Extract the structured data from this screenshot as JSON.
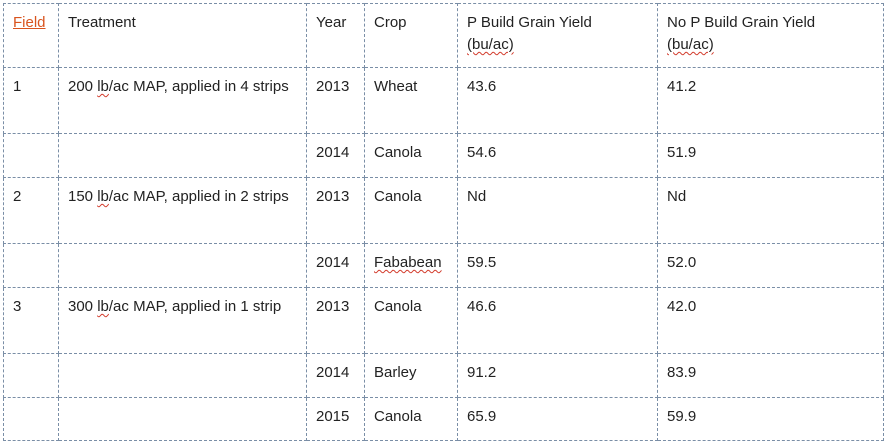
{
  "table": {
    "headers": {
      "field": "Field",
      "treatment": "Treatment",
      "year": "Year",
      "crop": "Crop",
      "p_build_line1": "P Build Grain Yield",
      "p_build_unit": "(bu/ac)",
      "no_p_build_line1": "No P Build Grain Yield",
      "no_p_build_unit": "(bu/ac)"
    },
    "rows": [
      {
        "field": "1",
        "treatment_pre": "200 ",
        "treatment_unit": "lb",
        "treatment_post": "/ac MAP, applied in 4 strips",
        "year": "2013",
        "crop": "Wheat",
        "p_build": "43.6",
        "no_p_build": "41.2"
      },
      {
        "field": "",
        "treatment_pre": "",
        "treatment_unit": "",
        "treatment_post": "",
        "year": "2014",
        "crop": "Canola",
        "p_build": "54.6",
        "no_p_build": "51.9"
      },
      {
        "field": "2",
        "treatment_pre": "150 ",
        "treatment_unit": "lb",
        "treatment_post": "/ac MAP, applied in 2 strips",
        "year": "2013",
        "crop": "Canola",
        "p_build": "Nd",
        "no_p_build": "Nd"
      },
      {
        "field": "",
        "treatment_pre": "",
        "treatment_unit": "",
        "treatment_post": "",
        "year": "2014",
        "crop": "Fababean",
        "p_build": "59.5",
        "no_p_build": "52.0"
      },
      {
        "field": "3",
        "treatment_pre": "300 ",
        "treatment_unit": "lb",
        "treatment_post": "/ac MAP, applied in 1 strip",
        "year": "2013",
        "crop": "Canola",
        "p_build": "46.6",
        "no_p_build": "42.0"
      },
      {
        "field": "",
        "treatment_pre": "",
        "treatment_unit": "",
        "treatment_post": "",
        "year": "2014",
        "crop": "Barley",
        "p_build": "91.2",
        "no_p_build": "83.9"
      },
      {
        "field": "",
        "treatment_pre": "",
        "treatment_unit": "",
        "treatment_post": "",
        "year": "2015",
        "crop": "Canola",
        "p_build": "65.9",
        "no_p_build": "59.9"
      }
    ]
  },
  "colors": {
    "link": "#d9541e",
    "border": "#7a8ea6",
    "spellcheck": "#d23a2a"
  }
}
